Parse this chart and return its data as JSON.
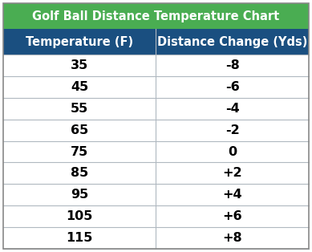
{
  "title": "Golf Ball Distance Temperature Chart",
  "col1_header": "Temperature (F)",
  "col2_header": "Distance Change (Yds)",
  "rows": [
    [
      "35",
      "-8"
    ],
    [
      "45",
      "-6"
    ],
    [
      "55",
      "-4"
    ],
    [
      "65",
      "-2"
    ],
    [
      "75",
      "0"
    ],
    [
      "85",
      "+2"
    ],
    [
      "95",
      "+4"
    ],
    [
      "105",
      "+6"
    ],
    [
      "115",
      "+8"
    ]
  ],
  "title_bg_color": "#4aad52",
  "header_bg_color": "#1a4f80",
  "header_text_color": "#ffffff",
  "row_bg_color": "#ffffff",
  "row_text_color": "#000000",
  "grid_color": "#b0b8c0",
  "title_text_color": "#ffffff",
  "outer_border_color": "#888888",
  "title_fontsize": 10.5,
  "header_fontsize": 10.5,
  "row_fontsize": 11.5,
  "fig_width": 3.89,
  "fig_height": 3.14,
  "dpi": 100
}
